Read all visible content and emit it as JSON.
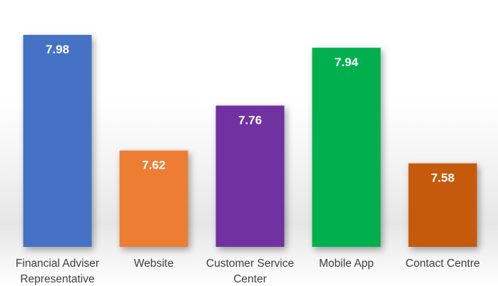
{
  "chart_data": {
    "type": "bar",
    "title": "",
    "xlabel": "",
    "ylabel": "",
    "categories": [
      [
        "Financial Adviser",
        "Representative"
      ],
      [
        "Website"
      ],
      [
        "Customer Service",
        "Center"
      ],
      [
        "Mobile App"
      ],
      [
        "Contact Centre"
      ]
    ],
    "values": [
      7.98,
      7.62,
      7.76,
      7.94,
      7.58
    ],
    "data_labels": [
      "7.98",
      "7.62",
      "7.76",
      "7.94",
      "7.58"
    ],
    "colors": [
      "#4472C4",
      "#ED7D31",
      "#7030A0",
      "#00B050",
      "#C55A11"
    ],
    "ylim": [
      7.32,
      8.0
    ],
    "grid": false,
    "legend": "none"
  }
}
